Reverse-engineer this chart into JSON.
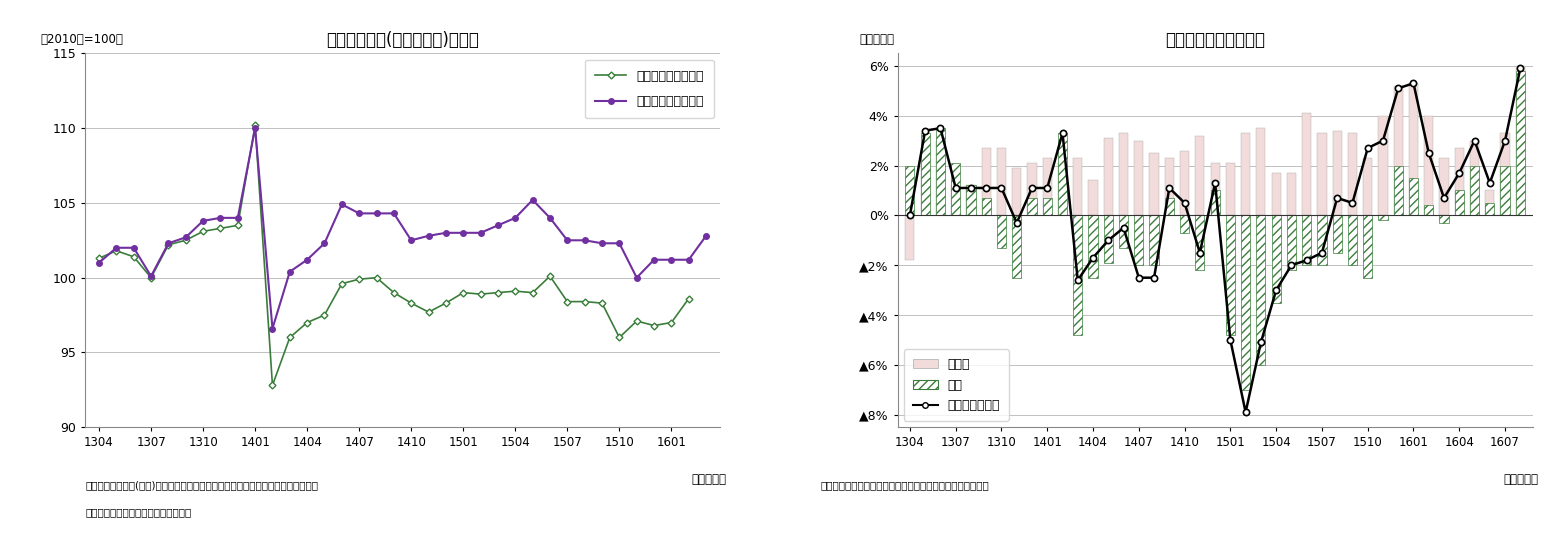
{
  "chart1": {
    "title": "小売業販売額(名目・実質)の推移",
    "ylabel": "（2010年=100）",
    "xlabel": "（年・月）",
    "ylim": [
      90,
      115
    ],
    "yticks": [
      90,
      95,
      100,
      105,
      110,
      115
    ],
    "xtick_labels": [
      "1304",
      "1307",
      "1310",
      "1401",
      "1404",
      "1407",
      "1410",
      "1501",
      "1504",
      "1507",
      "1510",
      "1601",
      "1604",
      "1607"
    ],
    "note1": "（注）小売販売額(実質)は消費者物価指数（持家の帰属家賃を除く総合）で実質化",
    "note2": "（資料）経済産業省「商業動態統計」",
    "real_color": "#3a7d3a",
    "nominal_color": "#7030a0",
    "real_label": "小売販売額（実質）",
    "nominal_label": "小売販売額（名目）",
    "real_data": [
      101.3,
      101.8,
      101.4,
      100.0,
      102.2,
      102.5,
      103.1,
      103.3,
      103.5,
      110.2,
      92.8,
      96.0,
      97.0,
      97.5,
      99.6,
      99.9,
      100.0,
      99.0,
      98.3,
      97.7,
      98.3,
      99.0,
      98.9,
      99.0,
      99.1,
      99.0,
      100.1,
      98.4,
      98.4,
      98.3,
      96.0,
      97.1,
      96.8,
      97.0,
      98.6
    ],
    "nominal_data": [
      101.0,
      102.0,
      102.0,
      100.1,
      102.3,
      102.7,
      103.8,
      104.0,
      104.0,
      110.0,
      96.6,
      100.4,
      101.2,
      102.3,
      104.9,
      104.3,
      104.3,
      104.3,
      102.5,
      102.8,
      103.0,
      103.0,
      103.0,
      103.5,
      104.0,
      105.2,
      104.0,
      102.5,
      102.5,
      102.3,
      102.3,
      100.0,
      101.2,
      101.2,
      101.2,
      102.8
    ]
  },
  "chart2": {
    "title": "外食産業売上高の推移",
    "ylabel": "（前年比）",
    "xlabel": "（年・月）",
    "ylim": [
      -8.5,
      6.5
    ],
    "ytick_vals": [
      6,
      4,
      2,
      0,
      -2,
      -4,
      -6,
      -8
    ],
    "ytick_labels": [
      "6%",
      "4%",
      "2%",
      "0%",
      "▲2%",
      "▲4%",
      "▲6%",
      "▲8%"
    ],
    "xtick_labels": [
      "1304",
      "1307",
      "1310",
      "1401",
      "1404",
      "1407",
      "1410",
      "1501",
      "1504",
      "1507",
      "1510",
      "1601",
      "1604",
      "1607"
    ],
    "note": "（資料）日本フードサービス協会「外食産業市場動向調査」",
    "bar_color_single": "#f2dcdb",
    "label_single": "客単価",
    "label_hatch": "客数",
    "label_line": "外食産業売上高",
    "single_data": [
      -1.8,
      2.0,
      3.0,
      1.2,
      1.2,
      2.7,
      2.7,
      1.9,
      2.1,
      2.3,
      2.1,
      2.3,
      1.4,
      3.1,
      3.3,
      3.0,
      2.5,
      2.3,
      2.6,
      3.2,
      2.1,
      2.1,
      3.3,
      3.5,
      1.7,
      1.7,
      4.1,
      3.3,
      3.4,
      3.3,
      2.3,
      4.0,
      5.2,
      5.3,
      4.0,
      2.3,
      2.7,
      3.0,
      1.0,
      3.3,
      6.0
    ],
    "hatch_data": [
      2.0,
      3.3,
      3.5,
      2.1,
      1.2,
      0.7,
      -1.3,
      -2.5,
      0.7,
      0.7,
      3.3,
      -4.8,
      -2.5,
      -1.9,
      -1.3,
      -2.0,
      -2.0,
      0.7,
      -0.7,
      -2.2,
      1.0,
      -4.8,
      -7.0,
      -6.0,
      -3.5,
      -2.2,
      -2.0,
      -2.0,
      -1.5,
      -2.0,
      -2.5,
      -0.2,
      2.0,
      1.5,
      0.4,
      -0.3,
      1.0,
      2.0,
      0.5,
      2.0,
      5.8
    ],
    "line_data": [
      0.0,
      3.4,
      3.5,
      1.1,
      1.1,
      1.1,
      1.1,
      -0.3,
      1.1,
      1.1,
      3.3,
      -2.6,
      -1.7,
      -1.0,
      -0.5,
      -2.5,
      -2.5,
      1.1,
      0.5,
      -1.5,
      1.3,
      -5.0,
      -7.9,
      -5.1,
      -3.0,
      -2.0,
      -1.8,
      -1.5,
      0.7,
      0.5,
      2.7,
      3.0,
      5.1,
      5.3,
      2.5,
      0.7,
      1.7,
      3.0,
      1.3,
      3.0,
      5.9
    ]
  }
}
